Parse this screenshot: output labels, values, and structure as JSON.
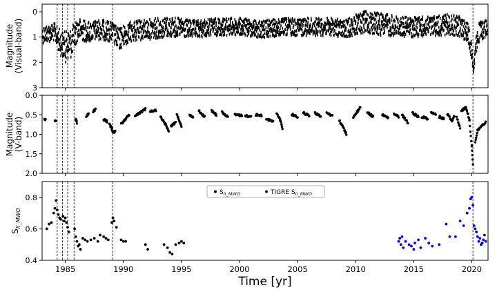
{
  "chart_data": {
    "type": "scatter",
    "xlabel": "Time [yr]",
    "xlim": [
      1983.0,
      2021.4
    ],
    "x_ticks": [
      1985,
      1990,
      1995,
      2000,
      2005,
      2010,
      2015,
      2020
    ],
    "event_lines": [
      1984.3,
      1984.75,
      1985.2,
      1985.75,
      1989.1,
      2020.1
    ],
    "panels": [
      {
        "id": "visual",
        "ylabel": "Magnitude\n(Visual-band)",
        "ylim": [
          3,
          -0.3
        ],
        "inverted": true,
        "y_ticks": [
          0,
          1,
          2,
          3
        ],
        "series": [
          {
            "color": "#000000",
            "style": "dense-band",
            "x": [
              1983.0,
              1984.0,
              1984.5,
              1985.0,
              1985.5,
              1986.0,
              1987.0,
              1988.0,
              1989.0,
              1989.5,
              1990.5,
              1992.0,
              1994.0,
              1996.0,
              1998.0,
              2000.0,
              2002.0,
              2004.0,
              2006.0,
              2008.0,
              2009.0,
              2010.0,
              2011.0,
              2012.0,
              2014.0,
              2016.0,
              2018.0,
              2019.0,
              2019.6,
              2019.9,
              2020.1,
              2020.3,
              2020.6,
              2021.0,
              2021.3
            ],
            "y": [
              0.9,
              0.8,
              1.2,
              1.4,
              1.2,
              0.7,
              0.8,
              0.7,
              0.8,
              1.1,
              0.8,
              0.7,
              0.6,
              0.7,
              0.6,
              0.6,
              0.7,
              0.6,
              0.6,
              0.6,
              0.7,
              0.5,
              0.4,
              0.5,
              0.6,
              0.6,
              0.5,
              0.6,
              0.8,
              1.4,
              2.3,
              1.4,
              0.8,
              0.7,
              0.6
            ],
            "spread": [
              0.35,
              0.35,
              0.5,
              0.6,
              0.6,
              0.45,
              0.4,
              0.4,
              0.4,
              0.45,
              0.4,
              0.4,
              0.4,
              0.35,
              0.35,
              0.35,
              0.35,
              0.35,
              0.35,
              0.35,
              0.35,
              0.4,
              0.45,
              0.45,
              0.4,
              0.4,
              0.4,
              0.4,
              0.4,
              0.4,
              0.15,
              0.35,
              0.4,
              0.35,
              0.35
            ]
          }
        ]
      },
      {
        "id": "vband",
        "ylabel": "Magnitude\n(V-band)",
        "ylim": [
          2.0,
          0.0
        ],
        "inverted": true,
        "y_ticks": [
          0.0,
          0.5,
          1.0,
          1.5,
          2.0
        ],
        "series": [
          {
            "color": "#000000",
            "style": "segments",
            "segments": [
              [
                [
                  1983.2,
                  0.6
                ],
                [
                  1983.3,
                  0.62
                ]
              ],
              [
                [
                  1984.1,
                  0.63
                ],
                [
                  1984.2,
                  0.66
                ]
              ],
              [
                [
                  1985.9,
                  0.62
                ],
                [
                  1986.0,
                  0.7
                ]
              ],
              [
                [
                  1986.8,
                  0.55
                ],
                [
                  1987.0,
                  0.47
                ]
              ],
              [
                [
                  1987.4,
                  0.42
                ],
                [
                  1987.6,
                  0.35
                ]
              ],
              [
                [
                  1988.3,
                  0.62
                ],
                [
                  1988.6,
                  0.67
                ]
              ],
              [
                [
                  1988.8,
                  0.75
                ],
                [
                  1989.0,
                  0.85
                ],
                [
                  1989.1,
                  0.95
                ],
                [
                  1989.3,
                  0.92
                ]
              ],
              [
                [
                  1989.8,
                  0.74
                ],
                [
                  1990.2,
                  0.6
                ],
                [
                  1990.5,
                  0.5
                ]
              ],
              [
                [
                  1991.0,
                  0.52
                ],
                [
                  1991.4,
                  0.45
                ],
                [
                  1991.9,
                  0.35
                ]
              ],
              [
                [
                  1992.3,
                  0.42
                ],
                [
                  1992.8,
                  0.38
                ]
              ],
              [
                [
                  1993.2,
                  0.55
                ],
                [
                  1993.6,
                  0.73
                ],
                [
                  1993.9,
                  0.9
                ]
              ],
              [
                [
                  1994.1,
                  0.78
                ],
                [
                  1994.5,
                  0.7
                ]
              ],
              [
                [
                  1994.6,
                  0.48
                ],
                [
                  1995.0,
                  0.78
                ]
              ],
              [
                [
                  1995.7,
                  0.5
                ],
                [
                  1996.0,
                  0.56
                ]
              ],
              [
                [
                  1996.5,
                  0.4
                ],
                [
                  1997.0,
                  0.55
                ]
              ],
              [
                [
                  1997.6,
                  0.4
                ],
                [
                  1998.0,
                  0.5
                ]
              ],
              [
                [
                  1998.5,
                  0.43
                ],
                [
                  1999.0,
                  0.56
                ]
              ],
              [
                [
                  1999.6,
                  0.5
                ],
                [
                  2000.2,
                  0.52
                ]
              ],
              [
                [
                  2000.5,
                  0.52
                ],
                [
                  2001.0,
                  0.55
                ]
              ],
              [
                [
                  2001.4,
                  0.5
                ],
                [
                  2001.9,
                  0.52
                ]
              ],
              [
                [
                  2002.3,
                  0.6
                ],
                [
                  2002.9,
                  0.68
                ]
              ],
              [
                [
                  2003.2,
                  0.45
                ],
                [
                  2003.5,
                  0.62
                ],
                [
                  2003.7,
                  0.85
                ]
              ],
              [
                [
                  2004.5,
                  0.49
                ],
                [
                  2005.0,
                  0.55
                ]
              ],
              [
                [
                  2005.5,
                  0.45
                ],
                [
                  2006.0,
                  0.52
                ]
              ],
              [
                [
                  2006.5,
                  0.45
                ],
                [
                  2007.0,
                  0.55
                ]
              ],
              [
                [
                  2007.5,
                  0.45
                ],
                [
                  2008.0,
                  0.52
                ]
              ],
              [
                [
                  2008.6,
                  0.65
                ],
                [
                  2008.9,
                  0.8
                ],
                [
                  2009.2,
                  1.0
                ]
              ],
              [
                [
                  2009.8,
                  0.55
                ],
                [
                  2010.2,
                  0.4
                ],
                [
                  2010.4,
                  0.3
                ]
              ],
              [
                [
                  2011.0,
                  0.43
                ],
                [
                  2011.5,
                  0.55
                ]
              ],
              [
                [
                  2012.3,
                  0.5
                ],
                [
                  2012.8,
                  0.58
                ]
              ],
              [
                [
                  2013.3,
                  0.48
                ],
                [
                  2013.7,
                  0.55
                ]
              ],
              [
                [
                  2014.0,
                  0.5
                ],
                [
                  2014.5,
                  0.7
                ]
              ],
              [
                [
                  2014.9,
                  0.45
                ],
                [
                  2015.4,
                  0.55
                ]
              ],
              [
                [
                  2015.7,
                  0.55
                ],
                [
                  2016.2,
                  0.6
                ]
              ],
              [
                [
                  2016.5,
                  0.42
                ],
                [
                  2016.9,
                  0.5
                ]
              ],
              [
                [
                  2017.2,
                  0.55
                ],
                [
                  2017.6,
                  0.6
                ]
              ],
              [
                [
                  2017.9,
                  0.48
                ],
                [
                  2018.3,
                  0.65
                ],
                [
                  2018.5,
                  0.52
                ]
              ],
              [
                [
                  2018.7,
                  0.55
                ],
                [
                  2019.0,
                  0.85
                ]
              ],
              [
                [
                  2019.1,
                  0.4
                ],
                [
                  2019.5,
                  0.3
                ],
                [
                  2019.8,
                  0.65
                ],
                [
                  2020.0,
                  1.3
                ],
                [
                  2020.1,
                  1.75
                ]
              ],
              [
                [
                  2020.3,
                  1.2
                ],
                [
                  2020.5,
                  0.9
                ],
                [
                  2020.8,
                  0.8
                ],
                [
                  2021.2,
                  0.7
                ]
              ]
            ]
          }
        ]
      },
      {
        "id": "sindex",
        "ylabel": "S_II_MWO",
        "ylim": [
          0.4,
          0.9
        ],
        "inverted": false,
        "y_ticks": [
          0.4,
          0.6,
          0.8
        ],
        "legend": {
          "position": "upper-center",
          "entries": [
            {
              "label": "S",
              "sub": "II_MWO",
              "color": "#000000"
            },
            {
              "label": "TIGRE S",
              "sub": "II_MWO",
              "color": "#0000ff"
            }
          ]
        },
        "series": [
          {
            "color": "#000000",
            "style": "points",
            "x": [
              1983.4,
              1983.6,
              1983.8,
              1984.0,
              1984.1,
              1984.2,
              1984.3,
              1984.4,
              1984.5,
              1984.6,
              1984.8,
              1984.9,
              1985.0,
              1985.1,
              1985.2,
              1985.3,
              1985.8,
              1985.9,
              1986.0,
              1986.1,
              1986.2,
              1986.3,
              1986.5,
              1986.7,
              1986.9,
              1987.2,
              1987.5,
              1987.8,
              1988.0,
              1988.3,
              1988.5,
              1988.7,
              1989.0,
              1989.1,
              1989.2,
              1989.4,
              1989.8,
              1990.0,
              1990.2,
              1991.9,
              1992.1,
              1993.5,
              1993.8,
              1994.0,
              1994.2,
              1994.5,
              1994.8,
              1995.0,
              1995.2
            ],
            "y": [
              0.6,
              0.63,
              0.64,
              0.7,
              0.73,
              0.78,
              0.72,
              0.69,
              0.67,
              0.66,
              0.68,
              0.65,
              0.67,
              0.64,
              0.61,
              0.58,
              0.6,
              0.55,
              0.52,
              0.49,
              0.5,
              0.47,
              0.54,
              0.53,
              0.52,
              0.53,
              0.54,
              0.52,
              0.56,
              0.55,
              0.54,
              0.53,
              0.64,
              0.67,
              0.65,
              0.61,
              0.53,
              0.52,
              0.52,
              0.5,
              0.47,
              0.5,
              0.48,
              0.45,
              0.44,
              0.5,
              0.51,
              0.52,
              0.51
            ]
          },
          {
            "color": "#0000ff",
            "style": "points",
            "x": [
              2013.7,
              2013.8,
              2013.9,
              2014.0,
              2014.1,
              2014.3,
              2014.6,
              2014.8,
              2015.0,
              2015.1,
              2015.4,
              2015.6,
              2016.0,
              2016.3,
              2016.6,
              2017.2,
              2017.8,
              2018.1,
              2018.6,
              2019.0,
              2019.3,
              2019.6,
              2019.8,
              2019.9,
              2020.0,
              2020.1,
              2020.2,
              2020.3,
              2020.4,
              2020.5,
              2020.6,
              2020.7,
              2020.8,
              2020.9,
              2021.0,
              2021.1,
              2021.2
            ],
            "y": [
              0.52,
              0.54,
              0.5,
              0.55,
              0.48,
              0.52,
              0.5,
              0.49,
              0.47,
              0.51,
              0.53,
              0.48,
              0.54,
              0.51,
              0.49,
              0.5,
              0.63,
              0.55,
              0.55,
              0.65,
              0.62,
              0.7,
              0.73,
              0.79,
              0.8,
              0.75,
              0.62,
              0.6,
              0.58,
              0.55,
              0.52,
              0.54,
              0.5,
              0.51,
              0.53,
              0.56,
              0.52
            ]
          }
        ]
      }
    ]
  }
}
